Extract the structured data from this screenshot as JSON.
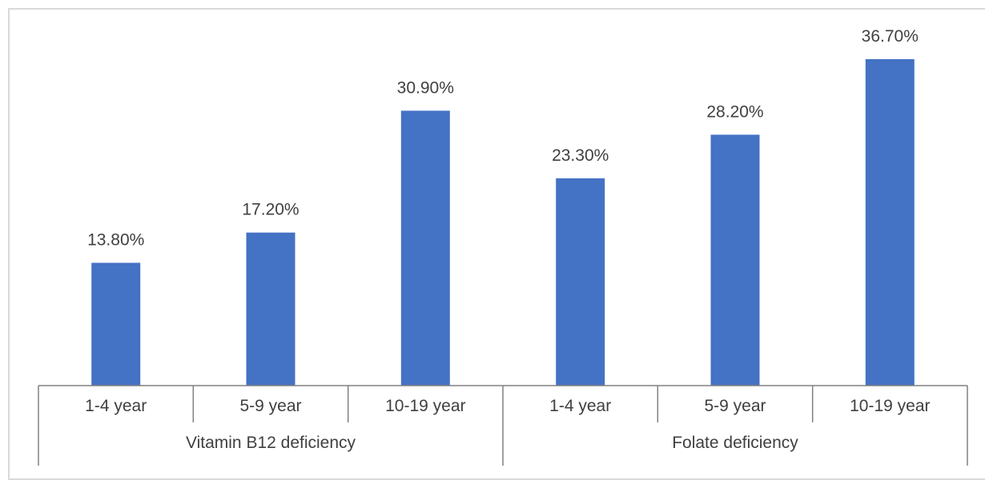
{
  "chart_data": {
    "type": "bar",
    "groups": [
      {
        "name": "Vitamin B12 deficiency",
        "categories": [
          "1-4 year",
          "5-9 year",
          "10-19 year"
        ],
        "values": [
          13.8,
          17.2,
          30.9
        ],
        "labels": [
          "13.80%",
          "17.20%",
          "30.90%"
        ]
      },
      {
        "name": "Folate deficiency",
        "categories": [
          "1-4 year",
          "5-9 year",
          "10-19 year"
        ],
        "values": [
          23.3,
          28.2,
          36.7
        ],
        "labels": [
          "23.30%",
          "28.20%",
          "36.70%"
        ]
      }
    ],
    "title": "",
    "xlabel": "",
    "ylabel": "",
    "ylim": [
      0,
      40
    ],
    "grid": false,
    "legend": "none",
    "bar_color": "#4472c4",
    "axis_color": "#808080",
    "text_color": "#404040"
  }
}
